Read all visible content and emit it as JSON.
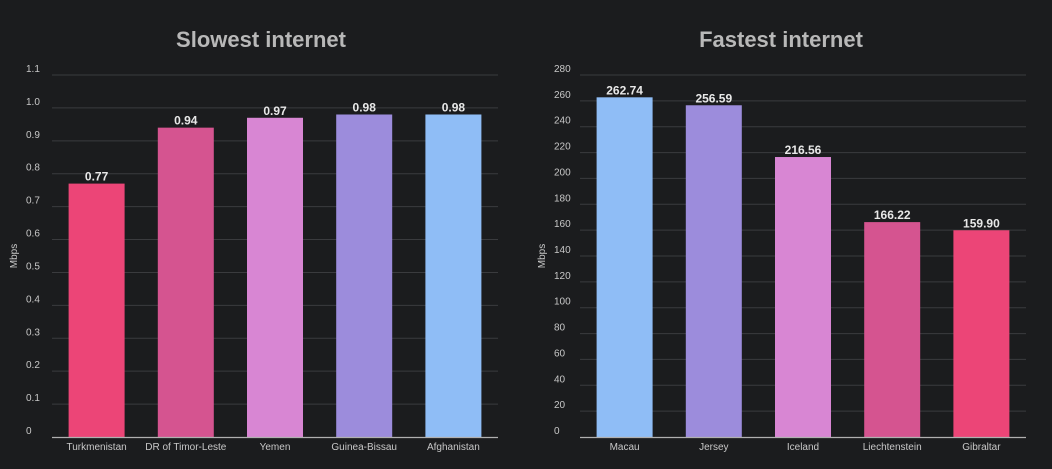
{
  "chart_data": [
    {
      "type": "bar",
      "title": "Slowest internet",
      "ylabel": "Mbps",
      "xlabel": "",
      "categories": [
        "Turkmenistan",
        "DR of Timor-Leste",
        "Yemen",
        "Guinea-Bissau",
        "Afghanistan"
      ],
      "values": [
        0.77,
        0.94,
        0.97,
        0.98,
        0.98
      ],
      "value_labels": [
        "0.77",
        "0.94",
        "0.97",
        "0.98",
        "0.98"
      ],
      "colors": [
        "#ec4577",
        "#d55490",
        "#d886d3",
        "#9c8cdc",
        "#8fbdf6"
      ],
      "ylim": [
        0,
        1.1
      ],
      "yticks": [
        "0",
        "0.1",
        "0.2",
        "0.3",
        "0.4",
        "0.5",
        "0.6",
        "0.7",
        "0.8",
        "0.9",
        "1.0",
        "1.1"
      ],
      "ytick_values": [
        0,
        0.1,
        0.2,
        0.3,
        0.4,
        0.5,
        0.6,
        0.7,
        0.8,
        0.9,
        1.0,
        1.1
      ],
      "grid": true
    },
    {
      "type": "bar",
      "title": "Fastest internet",
      "ylabel": "Mbps",
      "xlabel": "",
      "categories": [
        "Macau",
        "Jersey",
        "Iceland",
        "Liechtenstein",
        "Gibraltar"
      ],
      "values": [
        262.74,
        256.59,
        216.56,
        166.22,
        159.9
      ],
      "value_labels": [
        "262.74",
        "256.59",
        "216.56",
        "166.22",
        "159.90"
      ],
      "colors": [
        "#8fbdf6",
        "#9c8cdc",
        "#d886d3",
        "#d55490",
        "#ec4577"
      ],
      "ylim": [
        0,
        280
      ],
      "yticks": [
        "0",
        "20",
        "40",
        "60",
        "80",
        "100",
        "120",
        "140",
        "160",
        "180",
        "200",
        "220",
        "240",
        "260",
        "280"
      ],
      "ytick_values": [
        0,
        20,
        40,
        60,
        80,
        100,
        120,
        140,
        160,
        180,
        200,
        220,
        240,
        260,
        280
      ],
      "grid": true
    }
  ]
}
